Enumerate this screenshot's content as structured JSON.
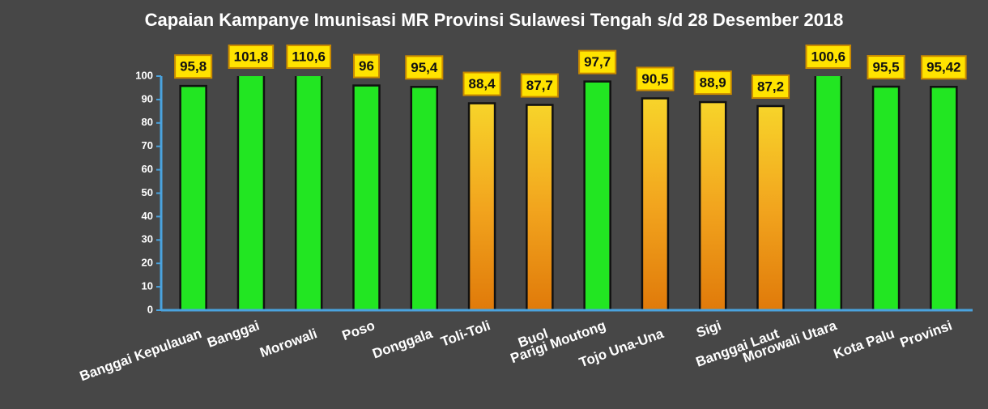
{
  "chart_data": {
    "type": "bar",
    "title": "Capaian Kampanye Imunisasi MR Provinsi Sulawesi Tengah s/d 28 Desember 2018",
    "categories": [
      "Banggai Kepulauan",
      "Banggai",
      "Morowali",
      "Poso",
      "Donggala",
      "Toli-Toli",
      "Buol",
      "Parigi Moutong",
      "Tojo Una-Una",
      "Sigi",
      "Banggai Laut",
      "Morowali Utara",
      "Kota Palu",
      "Provinsi"
    ],
    "values": [
      95.8,
      101.8,
      110.6,
      96,
      95.4,
      88.4,
      87.7,
      97.7,
      90.5,
      88.9,
      87.2,
      100.6,
      95.5,
      95.42
    ],
    "value_labels": [
      "95,8",
      "101,8",
      "110,6",
      "96",
      "95,4",
      "88,4",
      "87,7",
      "97,7",
      "90,5",
      "88,9",
      "87,2",
      "100,6",
      "95,5",
      "95,42"
    ],
    "colors": [
      "#22e622",
      "#22e622",
      "#22e622",
      "#22e622",
      "#22e622",
      "#f7d42a",
      "#f7d42a",
      "#22e622",
      "#f7d42a",
      "#f7d42a",
      "#f7d42a",
      "#22e622",
      "#22e622",
      "#22e622"
    ],
    "ylim": [
      0,
      100
    ],
    "yticks": [
      0,
      10,
      20,
      30,
      40,
      50,
      60,
      70,
      80,
      90,
      100
    ]
  }
}
